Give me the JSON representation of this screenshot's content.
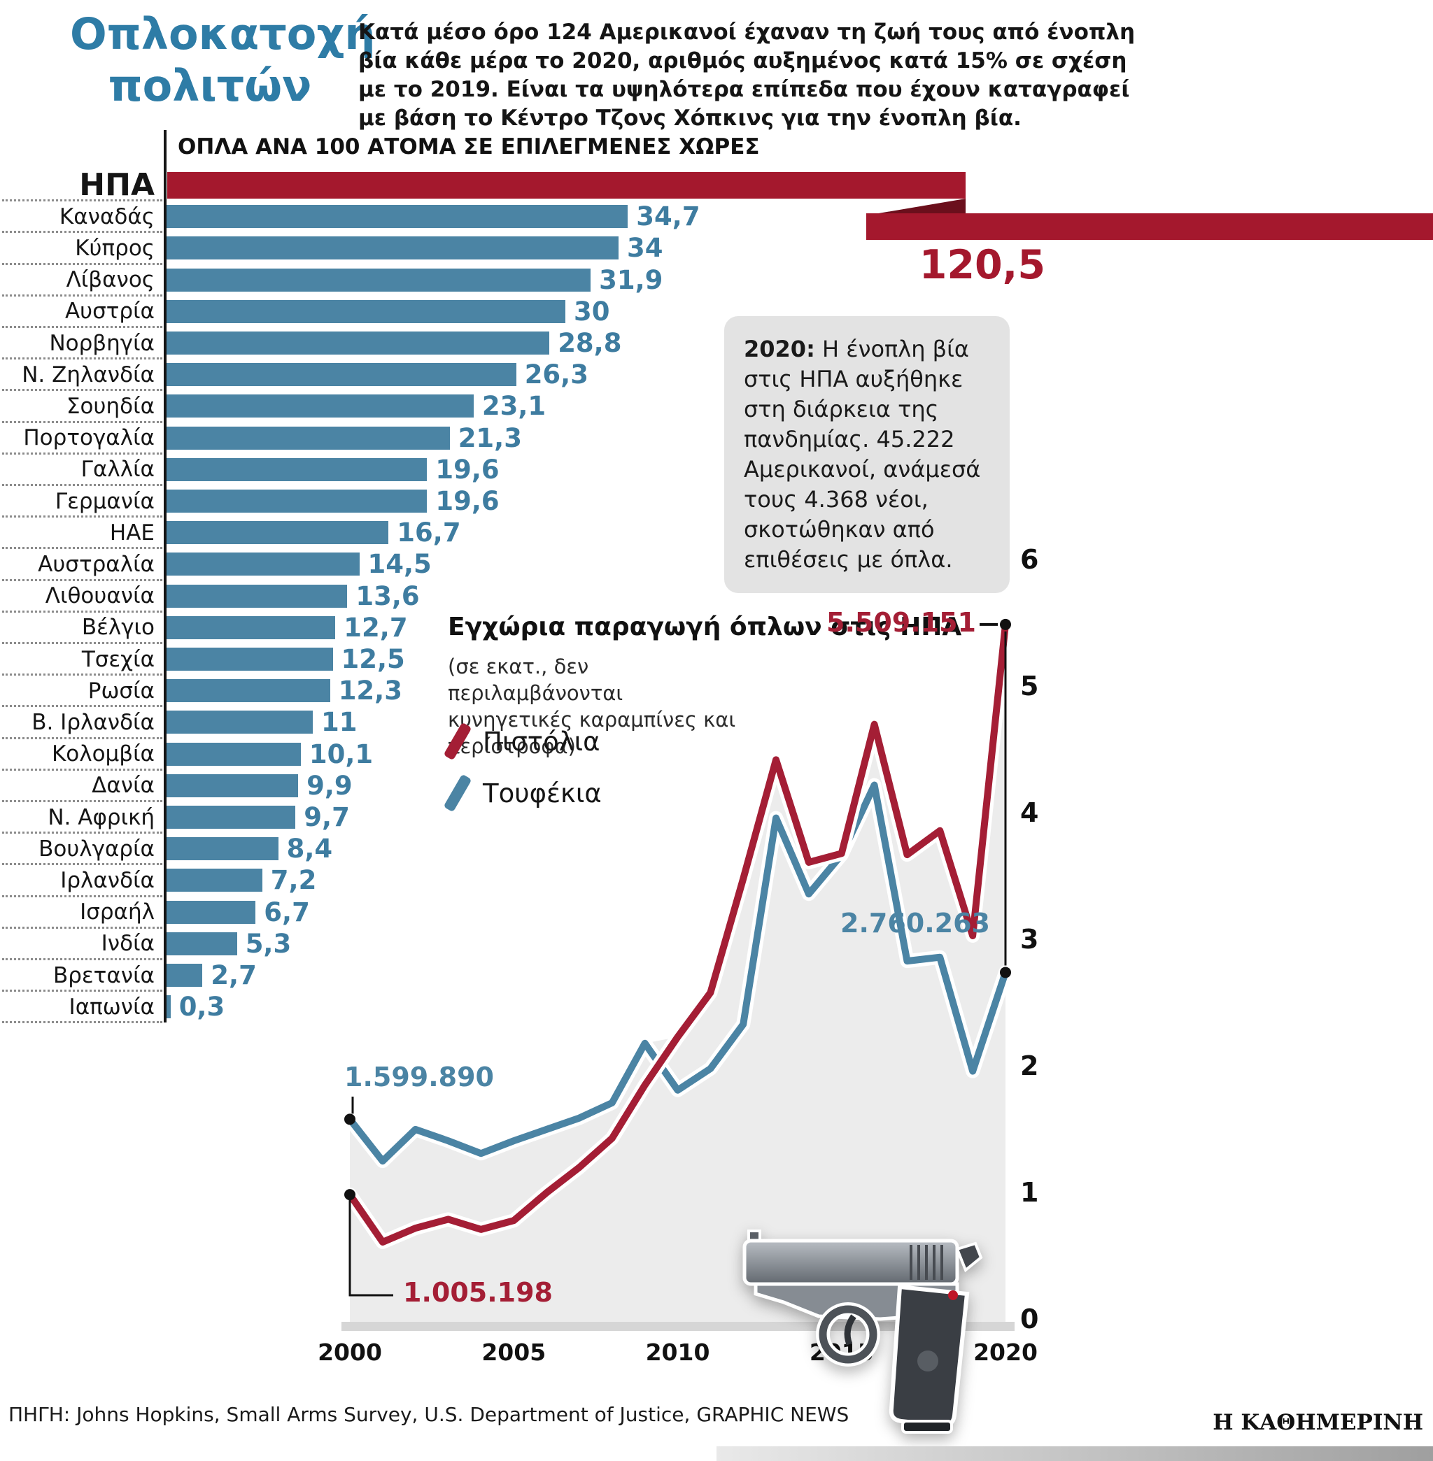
{
  "header": {
    "title_line1": "Οπλοκατοχή",
    "title_line2": "πολιτών",
    "intro": "Κατά μέσο όρο 124 Αμερικανοί έχαναν τη ζωή τους από ένοπλη βία κάθε μέρα το 2020, αριθμός αυξημένος κατά 15% σε σχέση με το 2019. Είναι τα υψηλότερα επίπεδα που έχουν καταγραφεί με βάση το Κέντρο Τζονς Χόπκινς για την ένοπλη βία."
  },
  "colors": {
    "title_blue": "#2E7CA6",
    "bar_blue": "#4B84A4",
    "value_blue": "#3E7CA0",
    "ribbon_red": "#A4182D",
    "ribbon_fold_dark": "#6B0F1C",
    "line_pistols_red": "#A41E35",
    "line_rifles_blue": "#4B84A4",
    "infobox_gray": "#E3E3E3",
    "area_gray": "#ECECEC"
  },
  "bar_chart": {
    "header": "ΟΠΛΑ ΑΝΑ 100 ΑΤΟΜΑ ΣΕ ΕΠΙΛΕΓΜΕΝΕΣ ΧΩΡΕΣ",
    "usa_value": "120,5"
  },
  "info_box": {
    "lead": "2020:",
    "text": " Η ένοπλη βία στις ΗΠΑ αυξήθηκε στη διάρκεια της πανδημίας. 45.222 Αμερικανοί, ανάμεσά τους 4.368 νέοι, σκοτώθηκαν από επιθέσεις με όπλα."
  },
  "line_chart": {
    "title": "Εγχώρια παραγωγή όπλων στις ΗΠΑ",
    "subtitle": "(σε εκατ., δεν περιλαμβάνονται κυνηγετικές καραμπίνες και περίστροφα)",
    "legend": [
      {
        "label": "Πιστόλια",
        "color": "#A41E35"
      },
      {
        "label": "Τουφέκια",
        "color": "#4B84A4"
      }
    ],
    "annotations": {
      "rifles_start": "1.599.890",
      "pistols_start": "1.005.198",
      "pistols_end": "5.509.151",
      "rifles_end": "2.760.263"
    }
  },
  "footer": {
    "source": "ΠΗΓΗ: Johns Hopkins, Small Arms Survey, U.S. Department of Justice, GRAPHIC NEWS",
    "brand": "Η ΚΑΘΗΜΕΡΙΝΗ"
  },
  "chart_data": [
    {
      "type": "bar",
      "title": "ΟΠΛΑ ΑΝΑ 100 ΑΤΟΜΑ ΣΕ ΕΠΙΛΕΓΜΕΝΕΣ ΧΩΡΕΣ",
      "orientation": "horizontal",
      "bar_color": "#4B84A4",
      "usa_ribbon_color": "#A4182D",
      "categories": [
        "ΗΠΑ",
        "Καναδάς",
        "Κύπρος",
        "Λίβανος",
        "Αυστρία",
        "Νορβηγία",
        "Ν. Ζηλανδία",
        "Σουηδία",
        "Πορτογαλία",
        "Γαλλία",
        "Γερμανία",
        "ΗΑΕ",
        "Αυστραλία",
        "Λιθουανία",
        "Βέλγιο",
        "Τσεχία",
        "Ρωσία",
        "Β. Ιρλανδία",
        "Κολομβία",
        "Δανία",
        "Ν. Αφρική",
        "Βουλγαρία",
        "Ιρλανδία",
        "Ισραήλ",
        "Ινδία",
        "Βρετανία",
        "Ιαπωνία"
      ],
      "values": [
        120.5,
        34.7,
        34,
        31.9,
        30,
        28.8,
        26.3,
        23.1,
        21.3,
        19.6,
        19.6,
        16.7,
        14.5,
        13.6,
        12.7,
        12.5,
        12.3,
        11,
        10.1,
        9.9,
        9.7,
        8.4,
        7.2,
        6.7,
        5.3,
        2.7,
        0.3
      ],
      "value_labels": [
        "120,5",
        "34,7",
        "34",
        "31,9",
        "30",
        "28,8",
        "26,3",
        "23,1",
        "21,3",
        "19,6",
        "19,6",
        "16,7",
        "14,5",
        "13,6",
        "12,7",
        "12,5",
        "12,3",
        "11",
        "10,1",
        "9,9",
        "9,7",
        "8,4",
        "7,2",
        "6,7",
        "5,3",
        "2,7",
        "0,3"
      ]
    },
    {
      "type": "line",
      "title": "Εγχώρια παραγωγή όπλων στις ΗΠΑ",
      "subtitle": "(σε εκατ., δεν περιλαμβάνονται κυνηγετικές καραμπίνες και περίστροφα)",
      "ylim": [
        0,
        6
      ],
      "yticks": [
        6,
        5,
        4,
        3,
        2,
        1,
        0
      ],
      "xticks": [
        2000,
        2005,
        2010,
        2015,
        2020
      ],
      "grid": false,
      "legend_position": "left",
      "x": [
        2000,
        2001,
        2002,
        2003,
        2004,
        2005,
        2006,
        2007,
        2008,
        2009,
        2010,
        2011,
        2012,
        2013,
        2014,
        2015,
        2016,
        2017,
        2018,
        2019,
        2020
      ],
      "series": [
        {
          "name": "Πιστόλια",
          "color": "#A41E35",
          "values": [
            1.005,
            0.63,
            0.74,
            0.81,
            0.73,
            0.8,
            1.02,
            1.22,
            1.45,
            1.87,
            2.25,
            2.6,
            3.5,
            4.44,
            3.63,
            3.7,
            4.72,
            3.69,
            3.88,
            3.05,
            5.509
          ]
        },
        {
          "name": "Τουφέκια",
          "color": "#4B84A4",
          "values": [
            1.6,
            1.27,
            1.52,
            1.43,
            1.33,
            1.43,
            1.52,
            1.61,
            1.73,
            2.2,
            1.83,
            2.0,
            2.35,
            3.98,
            3.38,
            3.69,
            4.24,
            2.85,
            2.88,
            1.98,
            2.76
          ]
        }
      ],
      "annotations": [
        {
          "series": "Τουφέκια",
          "x": 2000,
          "label": "1.599.890"
        },
        {
          "series": "Πιστόλια",
          "x": 2000,
          "label": "1.005.198"
        },
        {
          "series": "Πιστόλια",
          "x": 2020,
          "label": "5.509.151"
        },
        {
          "series": "Τουφέκια",
          "x": 2020,
          "label": "2.760.263"
        }
      ]
    }
  ]
}
